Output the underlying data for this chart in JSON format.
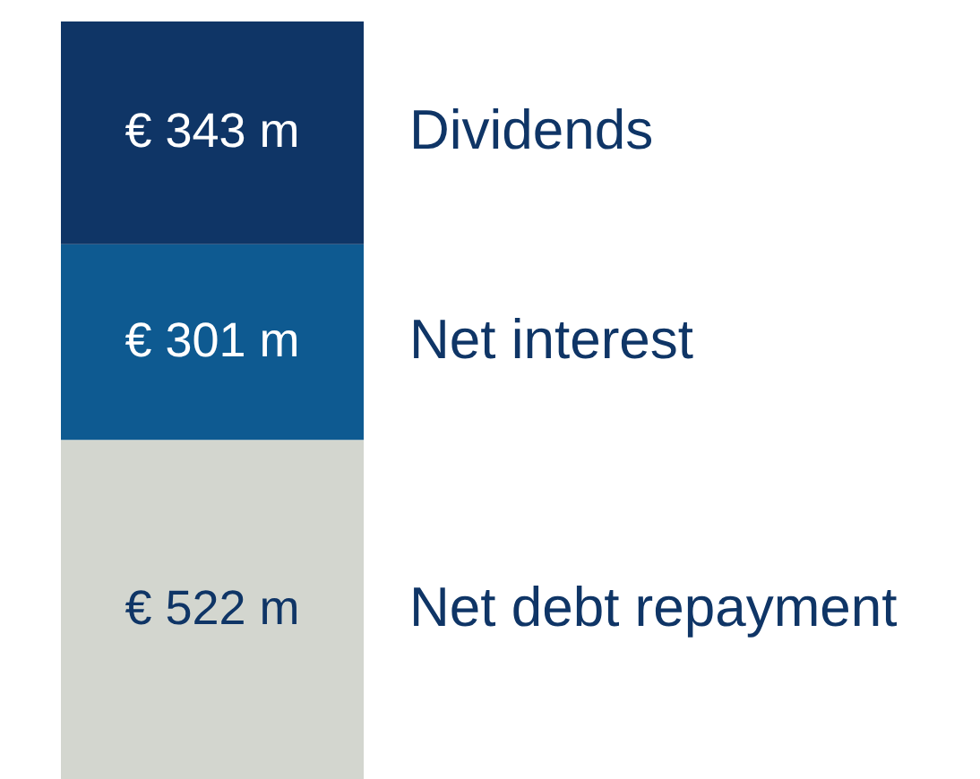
{
  "chart_data": {
    "type": "bar",
    "stacked": true,
    "categories": [
      null
    ],
    "series": [
      {
        "name": "Net debt repayment",
        "color": "#d3d6cf",
        "values": [
          522
        ],
        "value_labels": [
          "€ 522 m"
        ]
      },
      {
        "name": "Net interest",
        "color": "#0e5a91",
        "values": [
          301
        ],
        "value_labels": [
          "€ 301 m"
        ]
      },
      {
        "name": "Dividends",
        "color": "#0f3566",
        "values": [
          343
        ],
        "value_labels": [
          "€ 343 m"
        ]
      }
    ]
  }
}
